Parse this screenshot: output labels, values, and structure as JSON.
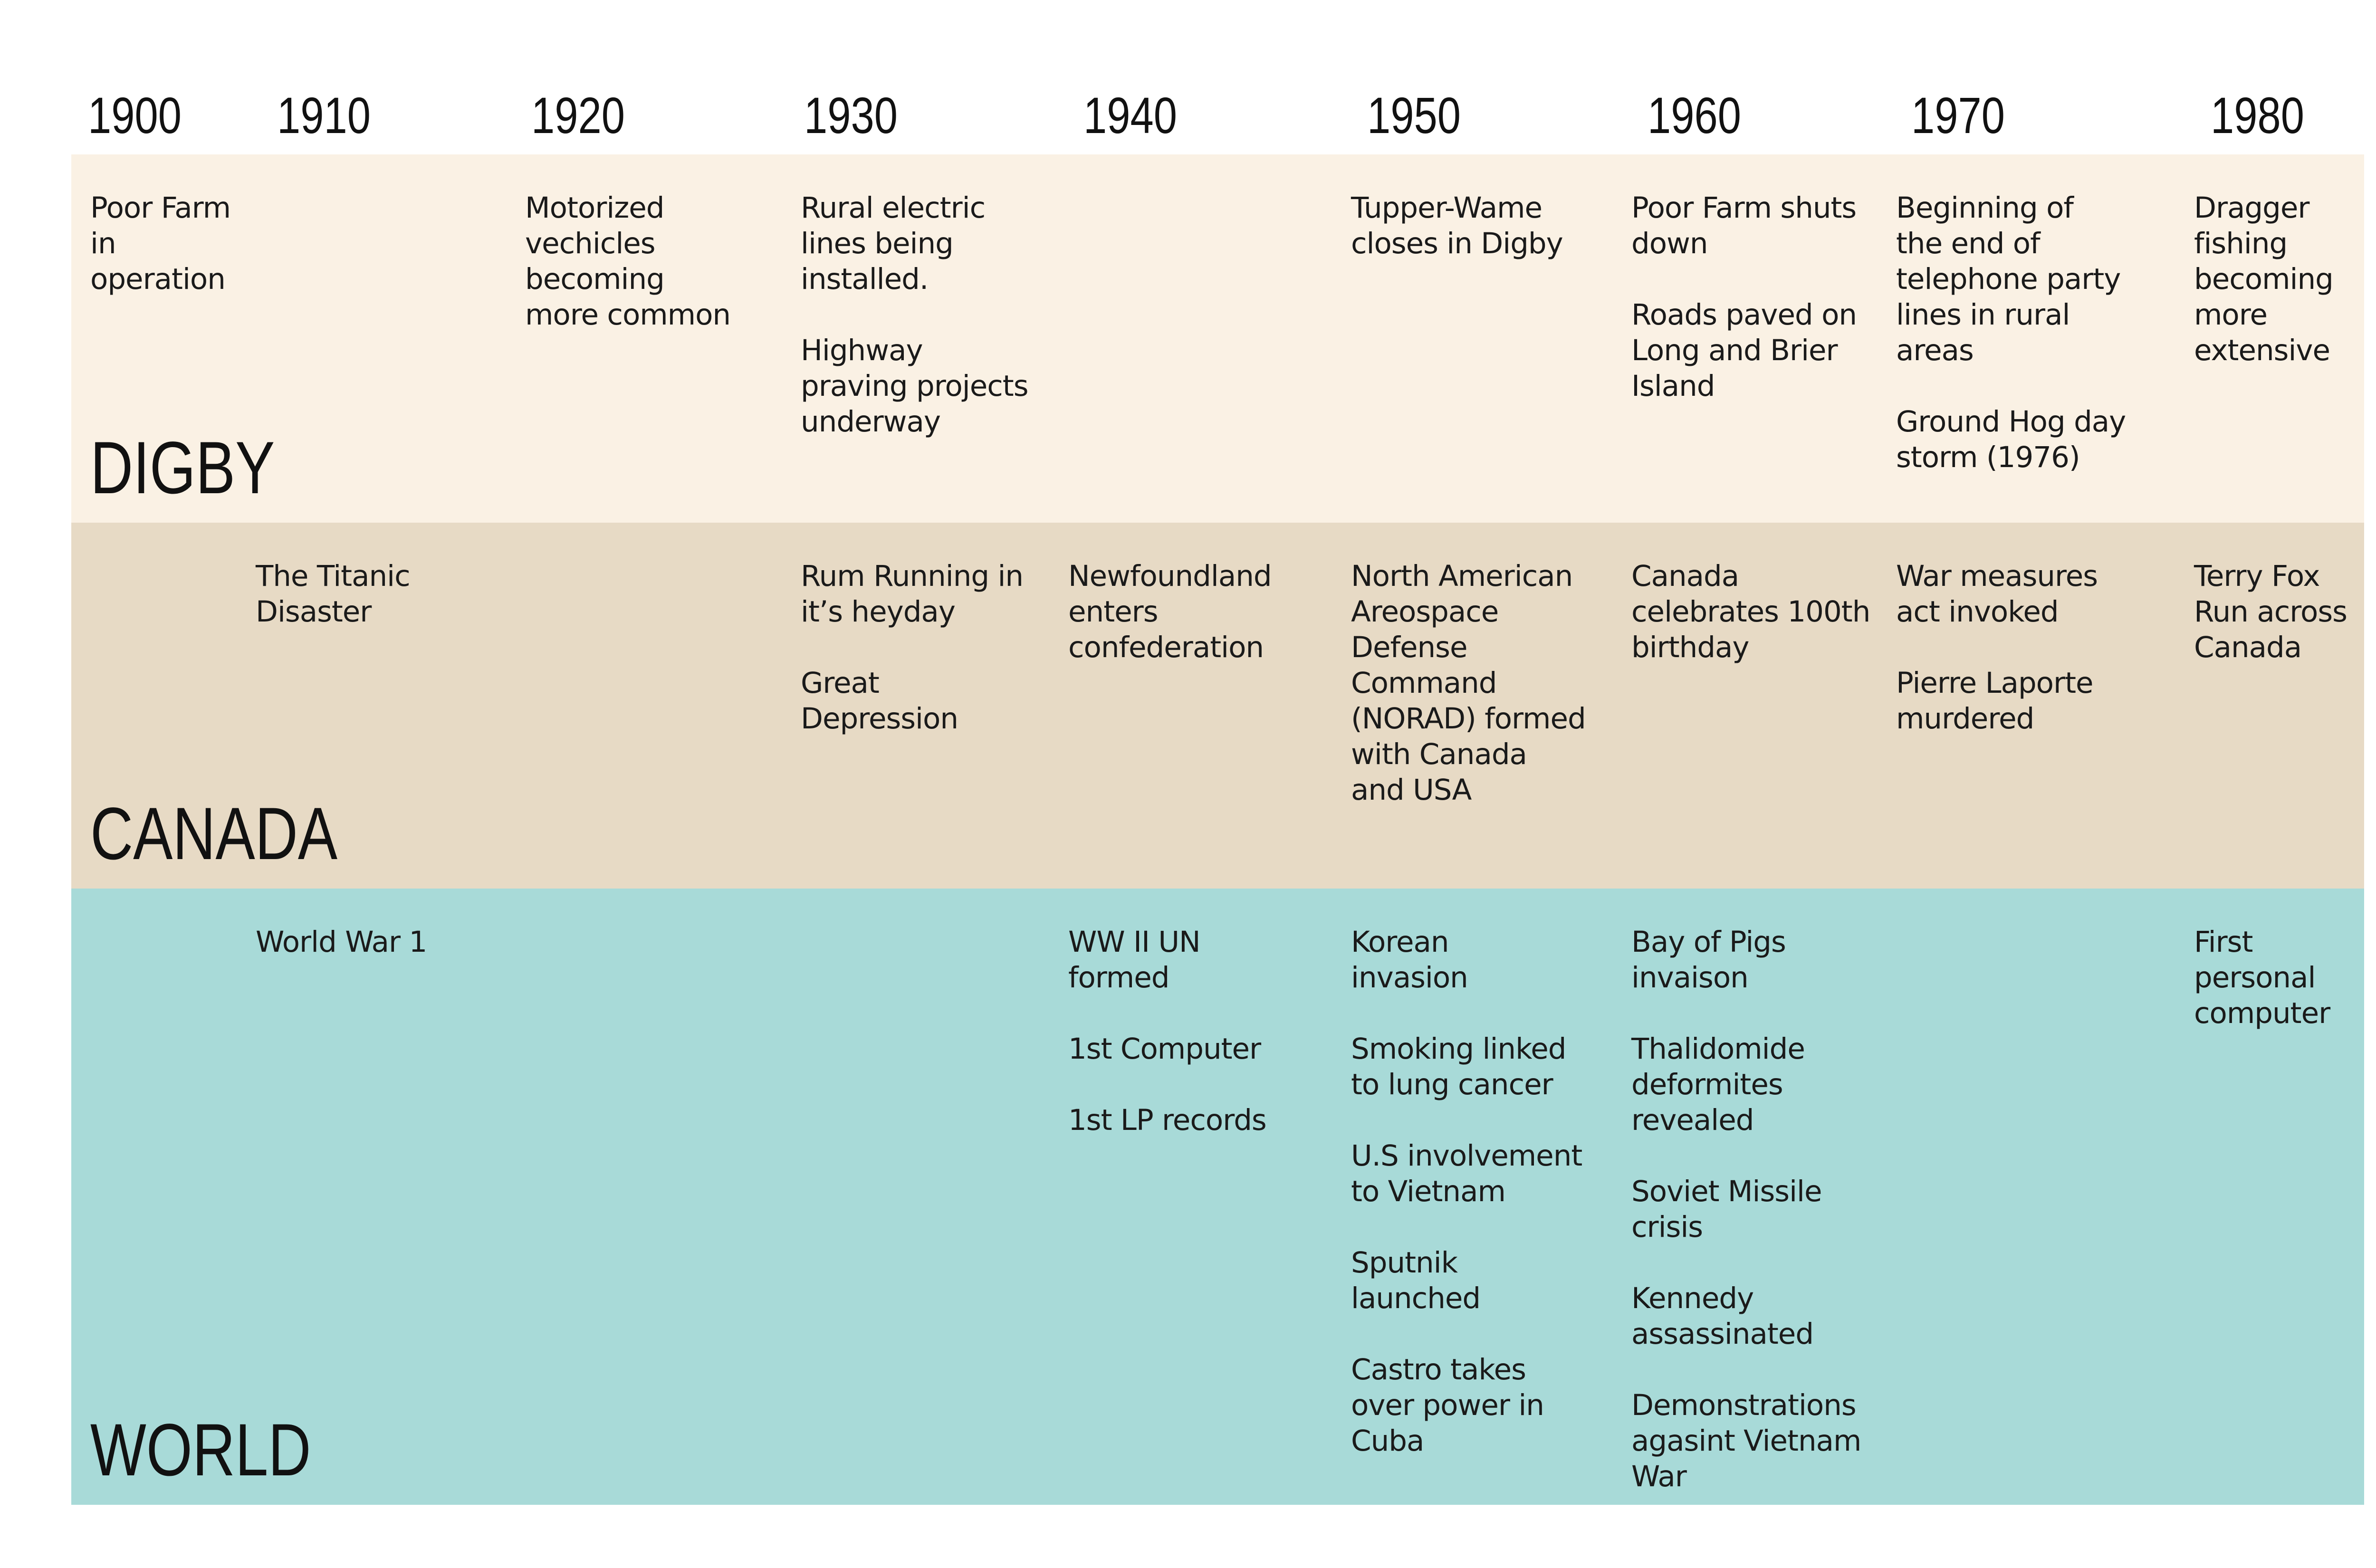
{
  "colors": {
    "page_background": "#ffffff",
    "digby_band": "#faf1e4",
    "canada_band": "#e7dac5",
    "world_band": "#a8dad8",
    "text": "#1a1a1a"
  },
  "years": [
    "1900",
    "1910",
    "1920",
    "1930",
    "1940",
    "1950",
    "1960",
    "1970",
    "1980"
  ],
  "bands": [
    {
      "label": "DIGBY",
      "color_key": "digby_band",
      "cells": [
        {
          "decade": "1900",
          "entries": [
            "Poor Farm in\noperation"
          ]
        },
        {
          "decade": "1920",
          "entries": [
            "Motorized\nvechicles\nbecoming\nmore common"
          ]
        },
        {
          "decade": "1930",
          "entries": [
            "Rural electric\nlines being\ninstalled.",
            "Highway\npraving projects\nunderway"
          ]
        },
        {
          "decade": "1950",
          "entries": [
            "Tupper-Wame\ncloses in Digby"
          ]
        },
        {
          "decade": "1960",
          "entries": [
            "Poor Farm shuts\ndown",
            "Roads paved on\nLong and Brier\nIsland"
          ]
        },
        {
          "decade": "1970",
          "entries": [
            "Beginning of\nthe end of\ntelephone party\nlines in rural\nareas",
            "Ground Hog day\nstorm (1976)"
          ]
        },
        {
          "decade": "1980",
          "entries": [
            "Dragger\nfishing\nbecoming\nmore\nextensive"
          ]
        }
      ]
    },
    {
      "label": "CANADA",
      "color_key": "canada_band",
      "cells": [
        {
          "decade": "1910",
          "entries": [
            "The Titanic Disaster"
          ]
        },
        {
          "decade": "1930",
          "entries": [
            "Rum Running in\nit’s heyday",
            "Great\nDepression"
          ]
        },
        {
          "decade": "1940",
          "entries": [
            "Newfoundland\nenters\nconfederation"
          ]
        },
        {
          "decade": "1950",
          "entries": [
            "North American\nAreospace\nDefense\nCommand\n(NORAD) formed\nwith Canada\nand USA"
          ]
        },
        {
          "decade": "1960",
          "entries": [
            "Canada\ncelebrates 100th\nbirthday"
          ]
        },
        {
          "decade": "1970",
          "entries": [
            "War measures\nact invoked",
            "Pierre Laporte\nmurdered"
          ]
        },
        {
          "decade": "1980",
          "entries": [
            "Terry Fox\nRun across\nCanada"
          ]
        }
      ]
    },
    {
      "label": "WORLD",
      "color_key": "world_band",
      "cells": [
        {
          "decade": "1910",
          "entries": [
            "World War 1"
          ]
        },
        {
          "decade": "1940",
          "entries": [
            "WW II UN\nformed",
            "1st Computer",
            "1st LP records"
          ]
        },
        {
          "decade": "1950",
          "entries": [
            "Korean\ninvasion",
            "Smoking linked\nto lung cancer",
            "U.S involvement\nto Vietnam",
            "Sputnik\nlaunched",
            "Castro takes\nover power in\nCuba"
          ]
        },
        {
          "decade": "1960",
          "entries": [
            "Bay of Pigs\ninvaison",
            "Thalidomide\ndeformites\nrevealed",
            "Soviet Missile\ncrisis",
            "Kennedy\nassassinated",
            "Demonstrations\nagasint Vietnam\nWar"
          ]
        },
        {
          "decade": "1980",
          "entries": [
            "First\npersonal\ncomputer"
          ]
        }
      ]
    }
  ]
}
